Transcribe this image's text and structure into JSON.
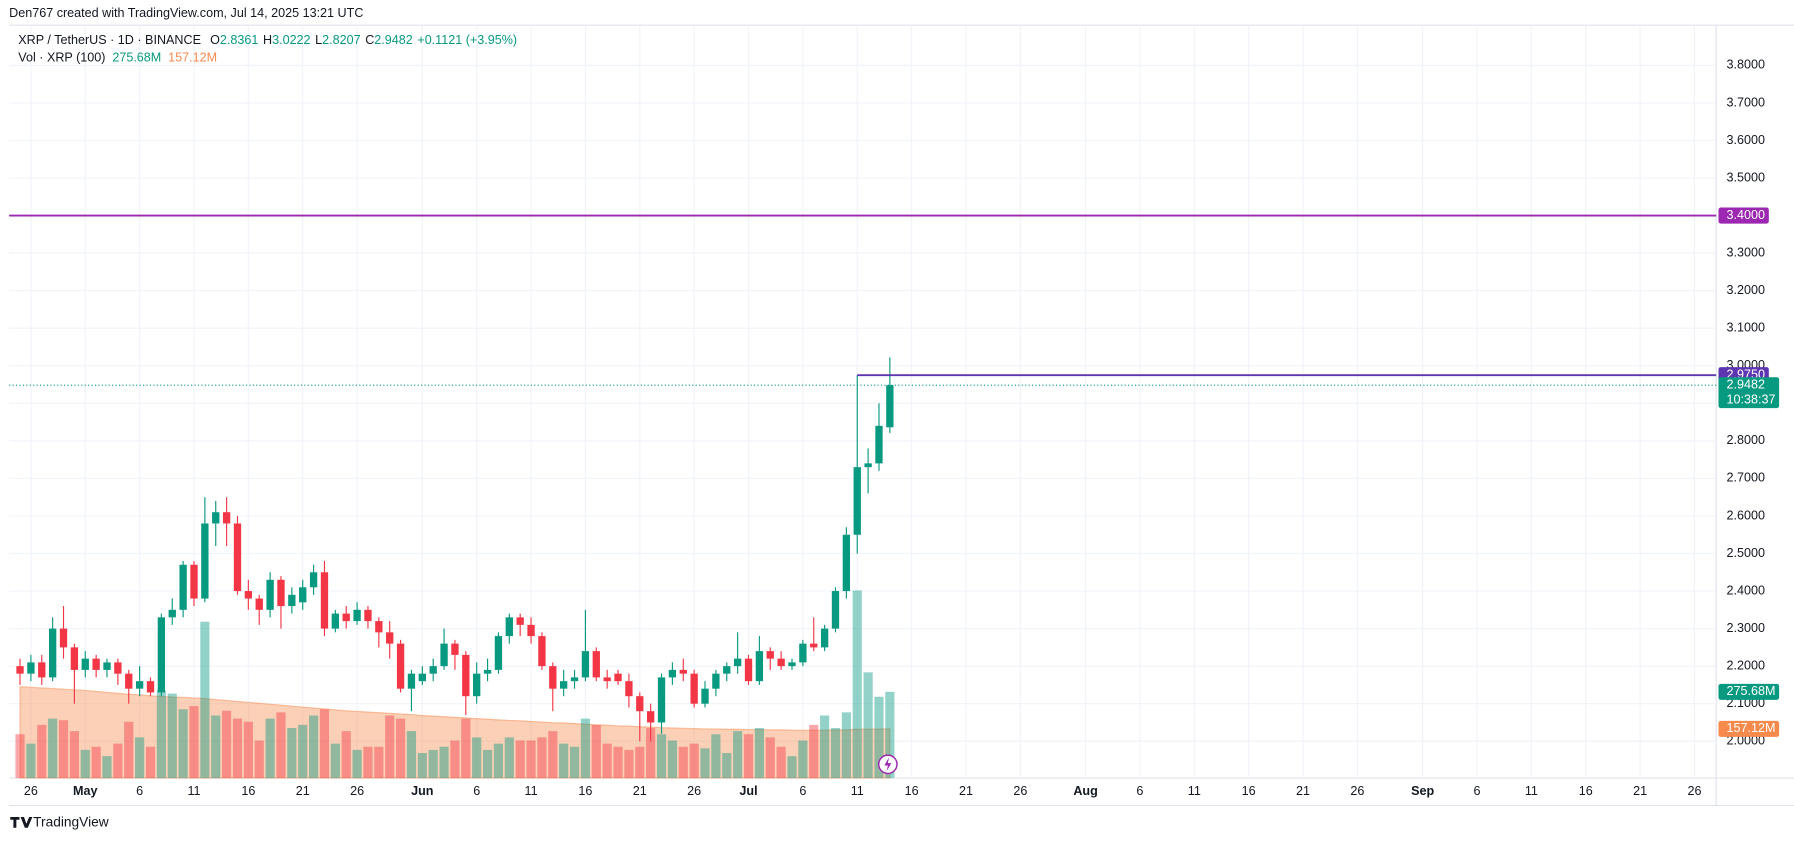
{
  "header": {
    "title": "Den767 created with TradingView.com, Jul 14, 2025 13:21 UTC"
  },
  "footer": {
    "brand": "TradingView"
  },
  "chart_data": {
    "type": "candlestick",
    "legend": {
      "symbol": "XRP / TetherUS · 1D · BINANCE",
      "readout": [
        {
          "label": "O",
          "value": "2.8361"
        },
        {
          "label": "H",
          "value": "3.0222"
        },
        {
          "label": "L",
          "value": "2.8207"
        },
        {
          "label": "C",
          "value": "2.9482"
        }
      ],
      "change": "+0.1121 (+3.95%)",
      "volume_title": "Vol · XRP (100)",
      "volume_text": "275.68M",
      "ma_text": "157.12M"
    },
    "up_color": "#089981",
    "down_color": "#f23645",
    "volume_up_color": "#08998170",
    "volume_down_color": "#f2364570",
    "ma_color": "#f68a4c",
    "x": [
      "2025-04-25",
      "2025-04-26",
      "2025-04-27",
      "2025-04-28",
      "2025-04-29",
      "2025-04-30",
      "2025-05-01",
      "2025-05-02",
      "2025-05-03",
      "2025-05-04",
      "2025-05-05",
      "2025-05-06",
      "2025-05-07",
      "2025-05-08",
      "2025-05-09",
      "2025-05-10",
      "2025-05-11",
      "2025-05-12",
      "2025-05-13",
      "2025-05-14",
      "2025-05-15",
      "2025-05-16",
      "2025-05-17",
      "2025-05-18",
      "2025-05-19",
      "2025-05-20",
      "2025-05-21",
      "2025-05-22",
      "2025-05-23",
      "2025-05-24",
      "2025-05-25",
      "2025-05-26",
      "2025-05-27",
      "2025-05-28",
      "2025-05-29",
      "2025-05-30",
      "2025-05-31",
      "2025-06-01",
      "2025-06-02",
      "2025-06-03",
      "2025-06-04",
      "2025-06-05",
      "2025-06-06",
      "2025-06-07",
      "2025-06-08",
      "2025-06-09",
      "2025-06-10",
      "2025-06-11",
      "2025-06-12",
      "2025-06-13",
      "2025-06-14",
      "2025-06-15",
      "2025-06-16",
      "2025-06-17",
      "2025-06-18",
      "2025-06-19",
      "2025-06-20",
      "2025-06-21",
      "2025-06-22",
      "2025-06-23",
      "2025-06-24",
      "2025-06-25",
      "2025-06-26",
      "2025-06-27",
      "2025-06-28",
      "2025-06-29",
      "2025-06-30",
      "2025-07-01",
      "2025-07-02",
      "2025-07-03",
      "2025-07-04",
      "2025-07-05",
      "2025-07-06",
      "2025-07-07",
      "2025-07-08",
      "2025-07-09",
      "2025-07-10",
      "2025-07-11",
      "2025-07-12",
      "2025-07-13",
      "2025-07-14"
    ],
    "open": [
      2.2,
      2.18,
      2.21,
      2.17,
      2.3,
      2.25,
      2.19,
      2.22,
      2.19,
      2.21,
      2.18,
      2.14,
      2.16,
      2.13,
      2.33,
      2.35,
      2.47,
      2.38,
      2.58,
      2.61,
      2.58,
      2.4,
      2.38,
      2.35,
      2.43,
      2.36,
      2.37,
      2.41,
      2.45,
      2.3,
      2.34,
      2.32,
      2.35,
      2.32,
      2.29,
      2.26,
      2.14,
      2.16,
      2.18,
      2.2,
      2.26,
      2.23,
      2.12,
      2.18,
      2.19,
      2.28,
      2.33,
      2.31,
      2.28,
      2.2,
      2.14,
      2.16,
      2.17,
      2.24,
      2.17,
      2.18,
      2.16,
      2.12,
      2.08,
      2.05,
      2.17,
      2.19,
      2.18,
      2.1,
      2.14,
      2.18,
      2.2,
      2.22,
      2.16,
      2.24,
      2.22,
      2.2,
      2.21,
      2.26,
      2.25,
      2.3,
      2.4,
      2.55,
      2.73,
      2.74,
      2.8361
    ],
    "high": [
      2.22,
      2.23,
      2.23,
      2.33,
      2.36,
      2.26,
      2.24,
      2.23,
      2.22,
      2.22,
      2.19,
      2.2,
      2.17,
      2.34,
      2.38,
      2.48,
      2.48,
      2.65,
      2.64,
      2.65,
      2.6,
      2.43,
      2.39,
      2.45,
      2.44,
      2.41,
      2.43,
      2.47,
      2.48,
      2.35,
      2.36,
      2.37,
      2.36,
      2.33,
      2.32,
      2.27,
      2.19,
      2.2,
      2.22,
      2.3,
      2.27,
      2.24,
      2.21,
      2.22,
      2.29,
      2.34,
      2.34,
      2.33,
      2.29,
      2.21,
      2.19,
      2.19,
      2.35,
      2.25,
      2.19,
      2.19,
      2.18,
      2.13,
      2.1,
      2.18,
      2.21,
      2.22,
      2.19,
      2.16,
      2.19,
      2.21,
      2.29,
      2.23,
      2.28,
      2.25,
      2.24,
      2.22,
      2.27,
      2.33,
      2.31,
      2.41,
      2.57,
      2.975,
      2.78,
      2.9,
      3.0222
    ],
    "low": [
      2.15,
      2.16,
      2.15,
      2.16,
      2.22,
      2.1,
      2.17,
      2.17,
      2.17,
      2.15,
      2.1,
      2.12,
      2.12,
      2.12,
      2.31,
      2.33,
      2.36,
      2.37,
      2.52,
      2.52,
      2.39,
      2.35,
      2.31,
      2.33,
      2.3,
      2.34,
      2.35,
      2.39,
      2.28,
      2.29,
      2.3,
      2.31,
      2.3,
      2.25,
      2.22,
      2.13,
      2.08,
      2.15,
      2.16,
      2.19,
      2.19,
      2.07,
      2.1,
      2.16,
      2.18,
      2.26,
      2.28,
      2.26,
      2.19,
      2.08,
      2.12,
      2.14,
      2.16,
      2.16,
      2.14,
      2.15,
      2.09,
      2.0,
      2.0,
      2.02,
      2.15,
      2.16,
      2.09,
      2.09,
      2.12,
      2.16,
      2.18,
      2.15,
      2.15,
      2.19,
      2.19,
      2.19,
      2.2,
      2.24,
      2.24,
      2.29,
      2.38,
      2.5,
      2.66,
      2.72,
      2.8207
    ],
    "close": [
      2.18,
      2.21,
      2.17,
      2.3,
      2.25,
      2.19,
      2.22,
      2.19,
      2.21,
      2.18,
      2.14,
      2.16,
      2.13,
      2.33,
      2.35,
      2.47,
      2.38,
      2.58,
      2.61,
      2.58,
      2.4,
      2.38,
      2.35,
      2.43,
      2.36,
      2.39,
      2.41,
      2.45,
      2.3,
      2.34,
      2.32,
      2.35,
      2.32,
      2.29,
      2.26,
      2.14,
      2.18,
      2.18,
      2.2,
      2.26,
      2.23,
      2.12,
      2.18,
      2.19,
      2.28,
      2.33,
      2.31,
      2.28,
      2.2,
      2.14,
      2.16,
      2.17,
      2.24,
      2.17,
      2.16,
      2.16,
      2.12,
      2.08,
      2.05,
      2.17,
      2.19,
      2.18,
      2.1,
      2.14,
      2.18,
      2.2,
      2.22,
      2.16,
      2.24,
      2.22,
      2.2,
      2.21,
      2.26,
      2.25,
      2.3,
      2.4,
      2.55,
      2.73,
      2.74,
      2.84,
      2.9482
    ],
    "volume": [
      140,
      110,
      170,
      190,
      185,
      150,
      90,
      100,
      70,
      110,
      180,
      130,
      100,
      280,
      270,
      220,
      230,
      500,
      200,
      215,
      190,
      180,
      120,
      190,
      210,
      160,
      170,
      200,
      220,
      110,
      150,
      90,
      100,
      100,
      200,
      190,
      150,
      80,
      90,
      100,
      120,
      190,
      130,
      90,
      110,
      130,
      120,
      120,
      130,
      150,
      110,
      100,
      190,
      170,
      110,
      100,
      90,
      100,
      160,
      140,
      120,
      100,
      110,
      95,
      140,
      80,
      150,
      140,
      160,
      130,
      100,
      70,
      120,
      170,
      200,
      160,
      210,
      600,
      338,
      260,
      275.68
    ],
    "volume_ma": [
      292,
      290,
      288,
      286,
      284,
      282,
      280,
      277,
      274,
      271,
      268,
      266,
      263,
      261,
      259,
      258,
      256,
      254,
      251,
      248,
      245,
      242,
      239,
      236,
      233,
      230,
      227,
      224,
      221,
      218,
      215,
      213,
      211,
      209,
      207,
      205,
      203,
      200,
      198,
      196,
      194,
      192,
      190,
      188,
      186,
      184,
      183,
      181,
      179,
      177,
      176,
      174,
      172,
      170,
      169,
      167,
      166,
      164,
      163,
      161,
      160,
      159,
      158,
      157,
      157,
      156,
      156,
      155,
      155,
      154,
      154,
      153,
      153,
      153,
      153,
      154,
      154,
      156,
      156,
      157,
      157.12
    ],
    "ylim": [
      1.902,
      3.907
    ],
    "yticks": [
      {
        "value": 2.0,
        "label": "2.0000"
      },
      {
        "value": 2.1,
        "label": "2.1000"
      },
      {
        "value": 2.2,
        "label": "2.2000"
      },
      {
        "value": 2.3,
        "label": "2.3000"
      },
      {
        "value": 2.4,
        "label": "2.4000"
      },
      {
        "value": 2.5,
        "label": "2.5000"
      },
      {
        "value": 2.6,
        "label": "2.6000"
      },
      {
        "value": 2.7,
        "label": "2.7000"
      },
      {
        "value": 2.8,
        "label": "2.8000"
      },
      {
        "value": 2.9,
        "label": "2.9000"
      },
      {
        "value": 3.0,
        "label": "3.0000"
      },
      {
        "value": 3.1,
        "label": "3.1000"
      },
      {
        "value": 3.2,
        "label": "3.2000"
      },
      {
        "value": 3.3,
        "label": "3.3000"
      },
      {
        "value": 3.4,
        "label": "3.4000"
      },
      {
        "value": 3.5,
        "label": "3.5000"
      },
      {
        "value": 3.6,
        "label": "3.6000"
      },
      {
        "value": 3.7,
        "label": "3.7000"
      },
      {
        "value": 3.8,
        "label": "3.8000"
      }
    ],
    "xlim": [
      "2025-04-24",
      "2025-09-28"
    ],
    "xticks": [
      {
        "value": "2025-04-26",
        "label": "26"
      },
      {
        "value": "2025-05-01",
        "label": "May"
      },
      {
        "value": "2025-05-06",
        "label": "6"
      },
      {
        "value": "2025-05-11",
        "label": "11"
      },
      {
        "value": "2025-05-16",
        "label": "16"
      },
      {
        "value": "2025-05-21",
        "label": "21"
      },
      {
        "value": "2025-05-26",
        "label": "26"
      },
      {
        "value": "2025-06-01",
        "label": "Jun"
      },
      {
        "value": "2025-06-06",
        "label": "6"
      },
      {
        "value": "2025-06-11",
        "label": "11"
      },
      {
        "value": "2025-06-16",
        "label": "16"
      },
      {
        "value": "2025-06-21",
        "label": "21"
      },
      {
        "value": "2025-06-26",
        "label": "26"
      },
      {
        "value": "2025-07-01",
        "label": "Jul"
      },
      {
        "value": "2025-07-06",
        "label": "6"
      },
      {
        "value": "2025-07-11",
        "label": "11"
      },
      {
        "value": "2025-07-16",
        "label": "16"
      },
      {
        "value": "2025-07-21",
        "label": "21"
      },
      {
        "value": "2025-07-26",
        "label": "26"
      },
      {
        "value": "2025-08-01",
        "label": "Aug"
      },
      {
        "value": "2025-08-06",
        "label": "6"
      },
      {
        "value": "2025-08-11",
        "label": "11"
      },
      {
        "value": "2025-08-16",
        "label": "16"
      },
      {
        "value": "2025-08-21",
        "label": "21"
      },
      {
        "value": "2025-08-26",
        "label": "26"
      },
      {
        "value": "2025-09-01",
        "label": "Sep"
      },
      {
        "value": "2025-09-06",
        "label": "6"
      },
      {
        "value": "2025-09-11",
        "label": "11"
      },
      {
        "value": "2025-09-16",
        "label": "16"
      },
      {
        "value": "2025-09-21",
        "label": "21"
      },
      {
        "value": "2025-09-26",
        "label": "26"
      }
    ],
    "grid": true,
    "hlines": [
      {
        "value": 3.4,
        "label": "3.4000",
        "color": "#9c27b0"
      },
      {
        "value": 2.975,
        "label": "2.9750",
        "color": "#5e35b1",
        "from": "2025-07-11"
      }
    ],
    "last_price": {
      "value": 2.9482,
      "label": "2.9482",
      "countdown": "10:38:37"
    }
  }
}
